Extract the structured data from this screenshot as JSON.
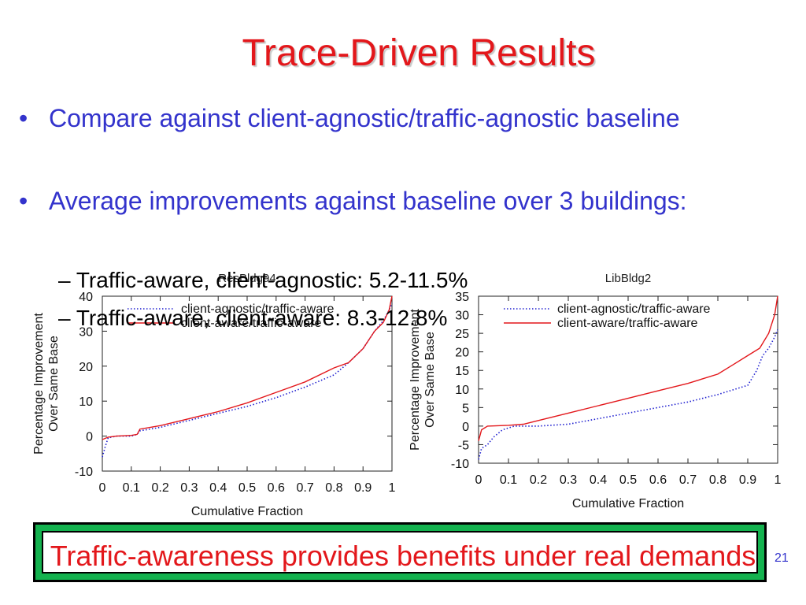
{
  "title": "Trace-Driven Results",
  "bullets": [
    {
      "marker": "•",
      "text": "Compare against client-agnostic/traffic-agnostic baseline"
    },
    {
      "marker": "•",
      "text": "Average improvements against baseline over 3 buildings:"
    }
  ],
  "sub_bullets": [
    {
      "marker": "–",
      "text": "Traffic-aware, client-agnostic: 5.2-11.5%"
    },
    {
      "marker": "–",
      "text": "Traffic-aware, client-aware: 8.3-12.8%"
    }
  ],
  "footer": "Traffic-awareness provides benefits under real demands",
  "page_number": "21",
  "colors": {
    "title": "#e3171b",
    "bullet": "#3333cc",
    "series_red": "#e3171b",
    "series_blue": "#2020d0",
    "footer_frame": "#14b24f"
  },
  "chart_data": [
    {
      "type": "line",
      "title": "ResBldg94",
      "xlabel": "Cumulative Fraction",
      "ylabel": "Percentage Improvement Over Same Base",
      "xlim": [
        0,
        1
      ],
      "ylim": [
        -10,
        40
      ],
      "xticks": [
        "0",
        "0.1",
        "0.2",
        "0.3",
        "0.4",
        "0.5",
        "0.6",
        "0.7",
        "0.8",
        "0.9",
        "1"
      ],
      "yticks": [
        "-10",
        "0",
        "10",
        "20",
        "30",
        "40"
      ],
      "grid": false,
      "legend": "top-left",
      "series": [
        {
          "name": "client-agnostic/traffic-aware",
          "style": "dotted",
          "color": "#2020d0",
          "points": [
            [
              0,
              -6
            ],
            [
              0.01,
              -3
            ],
            [
              0.02,
              -0.5
            ],
            [
              0.05,
              0
            ],
            [
              0.1,
              0
            ],
            [
              0.12,
              0.5
            ],
            [
              0.13,
              1.5
            ],
            [
              0.2,
              2.5
            ],
            [
              0.3,
              4.5
            ],
            [
              0.4,
              6.5
            ],
            [
              0.5,
              8.5
            ],
            [
              0.6,
              11
            ],
            [
              0.7,
              14
            ],
            [
              0.8,
              17.5
            ],
            [
              0.85,
              21
            ],
            [
              0.9,
              25
            ],
            [
              0.94,
              30
            ],
            [
              0.97,
              33
            ],
            [
              0.99,
              36
            ],
            [
              1,
              38
            ]
          ]
        },
        {
          "name": "client-aware/traffic-aware",
          "style": "solid",
          "color": "#e3171b",
          "points": [
            [
              0,
              -1
            ],
            [
              0.02,
              -0.3
            ],
            [
              0.05,
              0
            ],
            [
              0.1,
              0.2
            ],
            [
              0.12,
              0.5
            ],
            [
              0.13,
              2
            ],
            [
              0.2,
              3
            ],
            [
              0.3,
              5
            ],
            [
              0.4,
              7
            ],
            [
              0.5,
              9.5
            ],
            [
              0.6,
              12.5
            ],
            [
              0.7,
              15.5
            ],
            [
              0.8,
              19.5
            ],
            [
              0.85,
              21
            ],
            [
              0.9,
              25
            ],
            [
              0.94,
              30
            ],
            [
              0.97,
              32.5
            ],
            [
              0.99,
              36
            ],
            [
              1,
              40
            ]
          ]
        }
      ]
    },
    {
      "type": "line",
      "title": "LibBldg2",
      "xlabel": "Cumulative Fraction",
      "ylabel": "Percentage Improvement Over Same Base",
      "xlim": [
        0,
        1
      ],
      "ylim": [
        -10,
        35
      ],
      "xticks": [
        "0",
        "0.1",
        "0.2",
        "0.3",
        "0.4",
        "0.5",
        "0.6",
        "0.7",
        "0.8",
        "0.9",
        "1"
      ],
      "yticks": [
        "-10",
        "-5",
        "0",
        "5",
        "10",
        "15",
        "20",
        "25",
        "30",
        "35"
      ],
      "grid": false,
      "legend": "top-left",
      "series": [
        {
          "name": "client-agnostic/traffic-aware",
          "style": "dotted",
          "color": "#2020d0",
          "points": [
            [
              0,
              -9
            ],
            [
              0.01,
              -6
            ],
            [
              0.03,
              -5
            ],
            [
              0.05,
              -3
            ],
            [
              0.08,
              -1
            ],
            [
              0.12,
              0
            ],
            [
              0.2,
              0
            ],
            [
              0.3,
              0.5
            ],
            [
              0.4,
              2
            ],
            [
              0.5,
              3.5
            ],
            [
              0.6,
              5
            ],
            [
              0.7,
              6.5
            ],
            [
              0.8,
              8.5
            ],
            [
              0.9,
              11
            ],
            [
              0.93,
              15
            ],
            [
              0.95,
              19
            ],
            [
              0.97,
              21
            ],
            [
              0.99,
              24
            ],
            [
              1,
              26
            ]
          ]
        },
        {
          "name": "client-aware/traffic-aware",
          "style": "solid",
          "color": "#e3171b",
          "points": [
            [
              0,
              -4
            ],
            [
              0.01,
              -1
            ],
            [
              0.03,
              0
            ],
            [
              0.1,
              0.2
            ],
            [
              0.15,
              0.5
            ],
            [
              0.2,
              1.5
            ],
            [
              0.3,
              3.5
            ],
            [
              0.4,
              5.5
            ],
            [
              0.5,
              7.5
            ],
            [
              0.6,
              9.5
            ],
            [
              0.7,
              11.5
            ],
            [
              0.8,
              14
            ],
            [
              0.85,
              16.5
            ],
            [
              0.9,
              19
            ],
            [
              0.94,
              21
            ],
            [
              0.97,
              25
            ],
            [
              0.99,
              30
            ],
            [
              1,
              35
            ]
          ]
        }
      ]
    }
  ]
}
